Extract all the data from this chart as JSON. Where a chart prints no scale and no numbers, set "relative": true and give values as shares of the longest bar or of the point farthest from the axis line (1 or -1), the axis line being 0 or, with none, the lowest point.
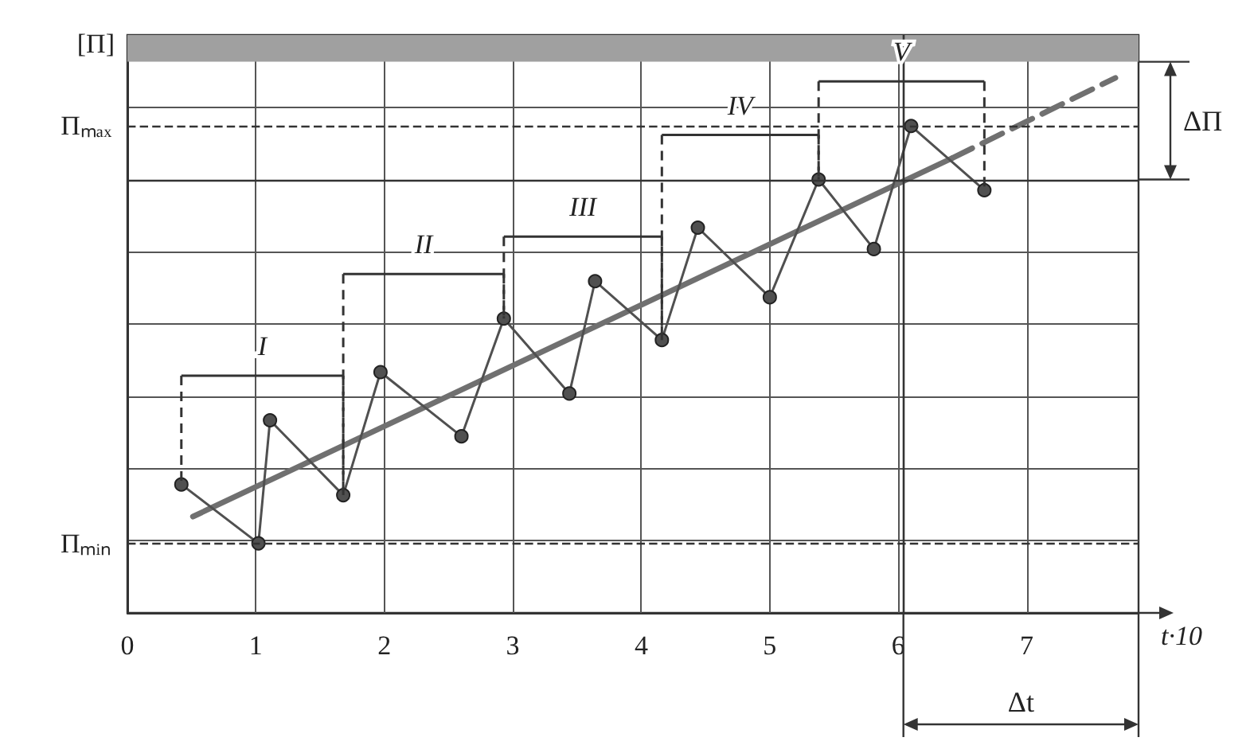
{
  "chart_data": {
    "type": "line",
    "relative": true,
    "xlabel": "t·10",
    "ylabel": "[Π]",
    "marker": "circle",
    "grid": true,
    "x": [
      0.42,
      1.02,
      1.11,
      1.68,
      1.97,
      2.6,
      2.93,
      3.44,
      3.64,
      4.16,
      4.44,
      5.0,
      5.38,
      5.81,
      6.1,
      6.67
    ],
    "series": [
      {
        "color": "#505050",
        "values": [
          0.24,
          0.13,
          0.36,
          0.22,
          0.45,
          0.33,
          0.55,
          0.41,
          0.62,
          0.51,
          0.72,
          0.59,
          0.81,
          0.68,
          0.91,
          0.79
        ]
      },
      {
        "color": "#707070",
        "x": [
          0.51,
          6.42
        ],
        "values": [
          0.18,
          0.85
        ],
        "marker": "none"
      },
      {
        "color": "#707070",
        "x": [
          6.42,
          7.69
        ],
        "values": [
          0.85,
          1
        ],
        "marker": "none",
        "line_style": "dashed"
      }
    ],
    "xlim": [
      0,
      7.87
    ],
    "xticks": [
      0,
      1,
      2,
      3,
      4,
      5,
      6,
      7
    ],
    "ref_lines": [
      {
        "axis": "y",
        "value": 0.91,
        "line_style": "dashed",
        "label": "Πₘₐₓ"
      },
      {
        "axis": "y",
        "value": 0.13,
        "line_style": "dashed",
        "label": "Πₘᵢₙ"
      },
      {
        "axis": "y",
        "value": 0.81
      },
      {
        "axis": "x",
        "value": 6.04
      }
    ],
    "bands": [
      {
        "axis": "y",
        "from": 1.03,
        "to": 1.08,
        "color": "#a0a0a0"
      }
    ],
    "annotations": [
      "I",
      "II",
      "III",
      "IV",
      "V",
      "ΔΠ",
      "Δt"
    ]
  }
}
